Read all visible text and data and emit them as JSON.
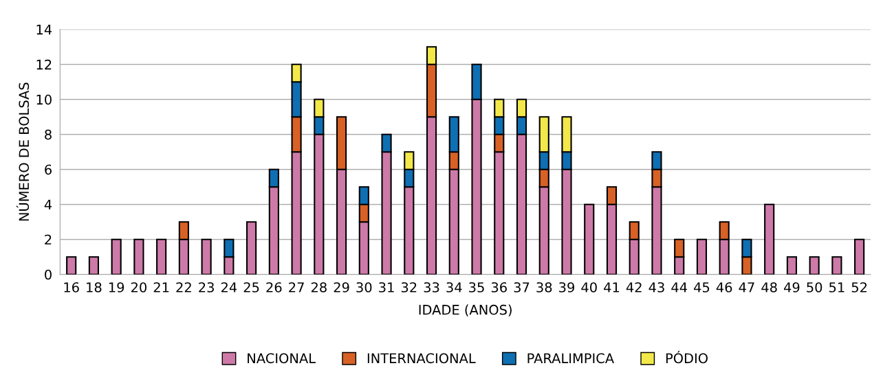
{
  "chart_data": {
    "type": "bar",
    "stacked": true,
    "xlabel": "IDADE (ANOS)",
    "ylabel": "NÚMERO DE BOLSAS",
    "categories": [
      "16",
      "18",
      "19",
      "20",
      "21",
      "22",
      "23",
      "24",
      "25",
      "26",
      "27",
      "28",
      "29",
      "30",
      "31",
      "32",
      "33",
      "34",
      "35",
      "36",
      "37",
      "38",
      "39",
      "40",
      "41",
      "42",
      "43",
      "44",
      "45",
      "46",
      "47",
      "48",
      "49",
      "50",
      "51",
      "52"
    ],
    "series": [
      {
        "name": "NACIONAL",
        "color": "#cd7aa8",
        "values": [
          1,
          1,
          2,
          2,
          2,
          2,
          2,
          1,
          3,
          5,
          7,
          8,
          6,
          3,
          7,
          5,
          9,
          6,
          10,
          7,
          8,
          5,
          6,
          4,
          4,
          2,
          5,
          1,
          2,
          2,
          0,
          4,
          1,
          1,
          1,
          2
        ]
      },
      {
        "name": "INTERNACIONAL",
        "color": "#d86126",
        "values": [
          0,
          0,
          0,
          0,
          0,
          1,
          0,
          0,
          0,
          0,
          2,
          0,
          3,
          1,
          0,
          0,
          3,
          1,
          0,
          1,
          0,
          1,
          0,
          0,
          1,
          1,
          1,
          1,
          0,
          1,
          1,
          0,
          0,
          0,
          0,
          0
        ]
      },
      {
        "name": "PARALIMPICA",
        "color": "#0f6fb3",
        "values": [
          0,
          0,
          0,
          0,
          0,
          0,
          0,
          1,
          0,
          1,
          2,
          1,
          0,
          1,
          1,
          1,
          0,
          2,
          2,
          1,
          1,
          1,
          1,
          0,
          0,
          0,
          1,
          0,
          0,
          0,
          1,
          0,
          0,
          0,
          0,
          0
        ]
      },
      {
        "name": "PÓDIO",
        "color": "#f3e84a",
        "values": [
          0,
          0,
          0,
          0,
          0,
          0,
          0,
          0,
          0,
          0,
          1,
          1,
          0,
          0,
          0,
          1,
          1,
          0,
          0,
          1,
          1,
          2,
          2,
          0,
          0,
          0,
          0,
          0,
          0,
          0,
          0,
          0,
          0,
          0,
          0,
          0
        ]
      }
    ],
    "ylim": [
      0,
      14
    ],
    "yticks": [
      0,
      2,
      4,
      6,
      8,
      10,
      12,
      14
    ],
    "grid": "y",
    "legend": "bottom"
  }
}
